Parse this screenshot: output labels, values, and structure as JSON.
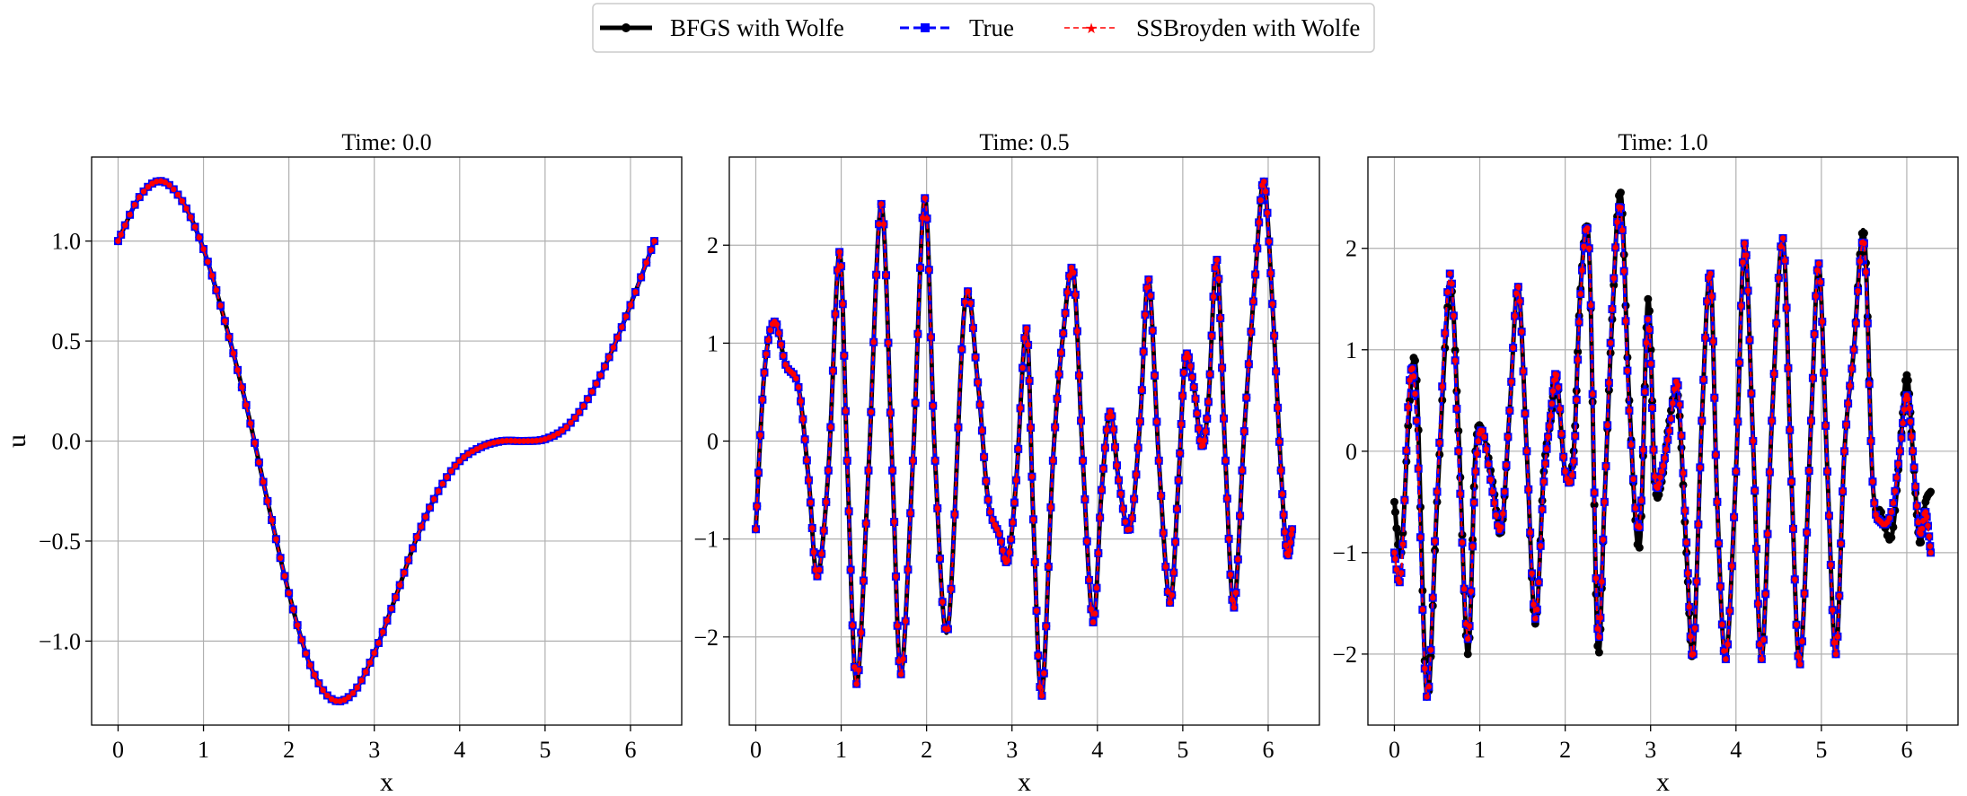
{
  "legend": {
    "entries": [
      {
        "label": "BFGS with Wolfe",
        "color": "#000000",
        "style": "solid-thick",
        "marker": "circle"
      },
      {
        "label": "True",
        "color": "#0000ff",
        "style": "dashed",
        "marker": "square"
      },
      {
        "label": "SSBroyden with Wolfe",
        "color": "#ff0000",
        "style": "dashed-thin",
        "marker": "star"
      }
    ]
  },
  "chart_data": [
    {
      "type": "line",
      "title": "Time: 0.0",
      "xlabel": "x",
      "ylabel": "u",
      "xlim": [
        -0.31,
        6.6
      ],
      "ylim": [
        -1.42,
        1.42
      ],
      "xticks": [
        0,
        1,
        2,
        3,
        4,
        5,
        6
      ],
      "xtick_labels": [
        "0",
        "1",
        "2",
        "3",
        "4",
        "5",
        "6"
      ],
      "yticks": [
        -1.0,
        -0.5,
        0.0,
        0.5,
        1.0
      ],
      "ytick_labels": [
        "−1.0",
        "−0.5",
        "0.0",
        "0.5",
        "1.0"
      ],
      "grid": true,
      "x": [
        0,
        0.25,
        0.5,
        0.75,
        1.0,
        1.25,
        1.5,
        1.75,
        2.0,
        2.25,
        2.5,
        2.75,
        3.0,
        3.25,
        3.5,
        3.75,
        4.0,
        4.25,
        4.5,
        4.75,
        5.0,
        5.25,
        5.5,
        5.75,
        6.0,
        6.28
      ],
      "series": [
        {
          "name": "BFGS with Wolfe",
          "values": [
            1.0,
            1.22,
            1.3,
            1.2,
            0.96,
            0.6,
            0.18,
            -0.3,
            -0.76,
            -1.12,
            -1.29,
            -1.26,
            -1.06,
            -0.78,
            -0.48,
            -0.25,
            -0.1,
            -0.03,
            0.0,
            0.0,
            0.01,
            0.07,
            0.21,
            0.42,
            0.68,
            1.0
          ]
        },
        {
          "name": "True",
          "values": [
            1.0,
            1.22,
            1.3,
            1.2,
            0.96,
            0.6,
            0.18,
            -0.3,
            -0.76,
            -1.12,
            -1.29,
            -1.26,
            -1.06,
            -0.78,
            -0.48,
            -0.25,
            -0.1,
            -0.03,
            0.0,
            0.0,
            0.01,
            0.07,
            0.21,
            0.42,
            0.68,
            1.0
          ]
        },
        {
          "name": "SSBroyden with Wolfe",
          "values": [
            1.0,
            1.22,
            1.3,
            1.2,
            0.96,
            0.6,
            0.18,
            -0.3,
            -0.76,
            -1.12,
            -1.29,
            -1.26,
            -1.06,
            -0.78,
            -0.48,
            -0.25,
            -0.1,
            -0.03,
            0.0,
            0.0,
            0.01,
            0.07,
            0.21,
            0.42,
            0.68,
            1.0
          ]
        }
      ]
    },
    {
      "type": "line",
      "title": "Time: 0.5",
      "xlabel": "x",
      "ylabel": "",
      "xlim": [
        -0.31,
        6.6
      ],
      "ylim": [
        -2.9,
        2.9
      ],
      "xticks": [
        0,
        1,
        2,
        3,
        4,
        5,
        6
      ],
      "xtick_labels": [
        "0",
        "1",
        "2",
        "3",
        "4",
        "5",
        "6"
      ],
      "yticks": [
        -2,
        -1,
        0,
        1,
        2
      ],
      "ytick_labels": [
        "−2",
        "−1",
        "0",
        "1",
        "2"
      ],
      "grid": true,
      "x": [
        0,
        0.1,
        0.22,
        0.35,
        0.5,
        0.62,
        0.72,
        0.85,
        0.98,
        1.07,
        1.18,
        1.32,
        1.47,
        1.6,
        1.7,
        1.84,
        1.98,
        2.1,
        2.25,
        2.45,
        2.6,
        2.72,
        2.85,
        2.95,
        3.05,
        3.17,
        3.25,
        3.35,
        3.48,
        3.6,
        3.72,
        3.83,
        3.95,
        4.05,
        4.15,
        4.25,
        4.38,
        4.5,
        4.6,
        4.72,
        4.85,
        4.95,
        5.03,
        5.13,
        5.22,
        5.3,
        5.4,
        5.5,
        5.6,
        5.72,
        5.85,
        5.95,
        6.05,
        6.15,
        6.22,
        6.28
      ],
      "series": [
        {
          "name": "BFGS with Wolfe",
          "values": [
            -0.9,
            0.7,
            1.22,
            0.78,
            0.55,
            -0.4,
            -1.38,
            -0.3,
            1.93,
            -0.2,
            -2.48,
            -0.3,
            2.42,
            -0.3,
            -2.38,
            -0.2,
            2.48,
            -0.2,
            -1.92,
            1.42,
            0.6,
            -0.6,
            -0.95,
            -1.22,
            -0.4,
            1.15,
            -0.8,
            -2.6,
            -0.2,
            1.1,
            1.72,
            -0.2,
            -1.85,
            -0.5,
            0.3,
            -0.4,
            -0.9,
            0.2,
            1.65,
            -0.2,
            -1.65,
            -0.4,
            0.85,
            0.55,
            -0.05,
            0.4,
            1.85,
            -0.2,
            -1.7,
            0.1,
            1.7,
            2.65,
            1.4,
            -0.3,
            -1.15,
            -0.9
          ]
        },
        {
          "name": "True",
          "values": [
            -0.9,
            0.7,
            1.22,
            0.78,
            0.55,
            -0.4,
            -1.38,
            -0.3,
            1.93,
            -0.2,
            -2.48,
            -0.3,
            2.42,
            -0.3,
            -2.38,
            -0.2,
            2.48,
            -0.2,
            -1.92,
            1.42,
            0.6,
            -0.6,
            -0.95,
            -1.22,
            -0.4,
            1.15,
            -0.8,
            -2.6,
            -0.2,
            1.1,
            1.72,
            -0.2,
            -1.85,
            -0.5,
            0.3,
            -0.4,
            -0.9,
            0.2,
            1.65,
            -0.2,
            -1.65,
            -0.4,
            0.85,
            0.55,
            -0.05,
            0.4,
            1.85,
            -0.2,
            -1.7,
            0.1,
            1.7,
            2.65,
            1.4,
            -0.3,
            -1.15,
            -0.9
          ]
        },
        {
          "name": "SSBroyden with Wolfe",
          "values": [
            -0.9,
            0.7,
            1.22,
            0.78,
            0.55,
            -0.4,
            -1.38,
            -0.3,
            1.93,
            -0.2,
            -2.48,
            -0.3,
            2.42,
            -0.3,
            -2.38,
            -0.2,
            2.48,
            -0.2,
            -1.92,
            1.42,
            0.6,
            -0.6,
            -0.95,
            -1.22,
            -0.4,
            1.15,
            -0.8,
            -2.6,
            -0.2,
            1.1,
            1.72,
            -0.2,
            -1.85,
            -0.5,
            0.3,
            -0.4,
            -0.9,
            0.2,
            1.65,
            -0.2,
            -1.65,
            -0.4,
            0.85,
            0.55,
            -0.05,
            0.4,
            1.85,
            -0.2,
            -1.7,
            0.1,
            1.7,
            2.65,
            1.4,
            -0.3,
            -1.15,
            -0.9
          ]
        }
      ]
    },
    {
      "type": "line",
      "title": "Time: 1.0",
      "xlabel": "x",
      "ylabel": "",
      "xlim": [
        -0.31,
        6.6
      ],
      "ylim": [
        -2.7,
        2.9
      ],
      "xticks": [
        0,
        1,
        2,
        3,
        4,
        5,
        6
      ],
      "xtick_labels": [
        "0",
        "1",
        "2",
        "3",
        "4",
        "5",
        "6"
      ],
      "yticks": [
        -2,
        -1,
        0,
        1,
        2
      ],
      "ytick_labels": [
        "−2",
        "−1",
        "0",
        "1",
        "2"
      ],
      "grid": true,
      "x": [
        0,
        0.08,
        0.18,
        0.26,
        0.38,
        0.5,
        0.65,
        0.75,
        0.86,
        0.95,
        1.03,
        1.15,
        1.25,
        1.35,
        1.45,
        1.55,
        1.65,
        1.75,
        1.83,
        1.9,
        2.0,
        2.1,
        2.18,
        2.28,
        2.38,
        2.46,
        2.55,
        2.65,
        2.75,
        2.87,
        2.97,
        3.05,
        3.13,
        3.22,
        3.32,
        3.42,
        3.5,
        3.6,
        3.7,
        3.78,
        3.88,
        4.0,
        4.1,
        4.2,
        4.3,
        4.42,
        4.55,
        4.65,
        4.75,
        4.88,
        4.97,
        5.07,
        5.17,
        5.27,
        5.38,
        5.5,
        5.6,
        5.7,
        5.82,
        5.92,
        6.0,
        6.07,
        6.15,
        6.22,
        6.28
      ],
      "series": [
        {
          "name": "BFGS with Wolfe",
          "values": [
            -0.5,
            -1.0,
            0.5,
            0.7,
            -2.42,
            -0.5,
            1.62,
            0.2,
            -2.0,
            0.0,
            0.2,
            -0.3,
            -0.8,
            0.4,
            1.62,
            0.0,
            -1.7,
            -0.2,
            0.3,
            0.72,
            -0.2,
            0.0,
            1.6,
            2.0,
            -1.92,
            -0.5,
            1.3,
            2.55,
            0.5,
            -0.95,
            1.5,
            -0.3,
            -0.3,
            0.3,
            0.55,
            -1.0,
            -2.0,
            0.3,
            1.75,
            -0.5,
            -2.05,
            -0.2,
            2.05,
            0.1,
            -2.05,
            0.3,
            2.1,
            -0.3,
            -2.1,
            0.3,
            1.85,
            -0.2,
            -2.0,
            0.0,
            1.0,
            2.15,
            -0.3,
            -0.6,
            -0.85,
            0.0,
            0.75,
            0.0,
            -0.9,
            -0.5,
            -0.4
          ]
        },
        {
          "name": "True",
          "values": [
            -1.0,
            -1.2,
            0.7,
            0.3,
            -2.42,
            -0.4,
            1.75,
            0.0,
            -1.85,
            -0.2,
            0.2,
            -0.4,
            -0.75,
            0.4,
            1.62,
            0.0,
            -1.65,
            -0.3,
            0.35,
            0.75,
            -0.2,
            -0.1,
            1.55,
            2.0,
            -1.75,
            -0.5,
            1.4,
            2.4,
            0.4,
            -0.75,
            1.3,
            -0.25,
            -0.2,
            0.2,
            0.65,
            -0.9,
            -2.0,
            0.3,
            1.75,
            -0.5,
            -2.05,
            -0.2,
            2.05,
            0.1,
            -2.05,
            0.3,
            2.1,
            -0.3,
            -2.1,
            0.3,
            1.85,
            -0.2,
            -2.0,
            0.0,
            1.0,
            2.05,
            -0.3,
            -0.7,
            -0.6,
            0.0,
            0.55,
            0.0,
            -0.8,
            -0.6,
            -1.0
          ]
        },
        {
          "name": "SSBroyden with Wolfe",
          "values": [
            -1.0,
            -1.2,
            0.7,
            0.3,
            -2.42,
            -0.4,
            1.75,
            0.0,
            -1.85,
            -0.2,
            0.2,
            -0.4,
            -0.75,
            0.4,
            1.62,
            0.0,
            -1.65,
            -0.3,
            0.35,
            0.75,
            -0.2,
            -0.1,
            1.55,
            2.0,
            -1.75,
            -0.5,
            1.4,
            2.4,
            0.4,
            -0.75,
            1.3,
            -0.25,
            -0.2,
            0.2,
            0.65,
            -0.9,
            -2.0,
            0.3,
            1.75,
            -0.5,
            -2.05,
            -0.2,
            2.05,
            0.1,
            -2.05,
            0.3,
            2.1,
            -0.3,
            -2.1,
            0.3,
            1.85,
            -0.2,
            -2.0,
            0.0,
            1.0,
            2.05,
            -0.3,
            -0.7,
            -0.6,
            0.0,
            0.55,
            0.0,
            -0.8,
            -0.6,
            -1.0
          ]
        }
      ]
    }
  ]
}
